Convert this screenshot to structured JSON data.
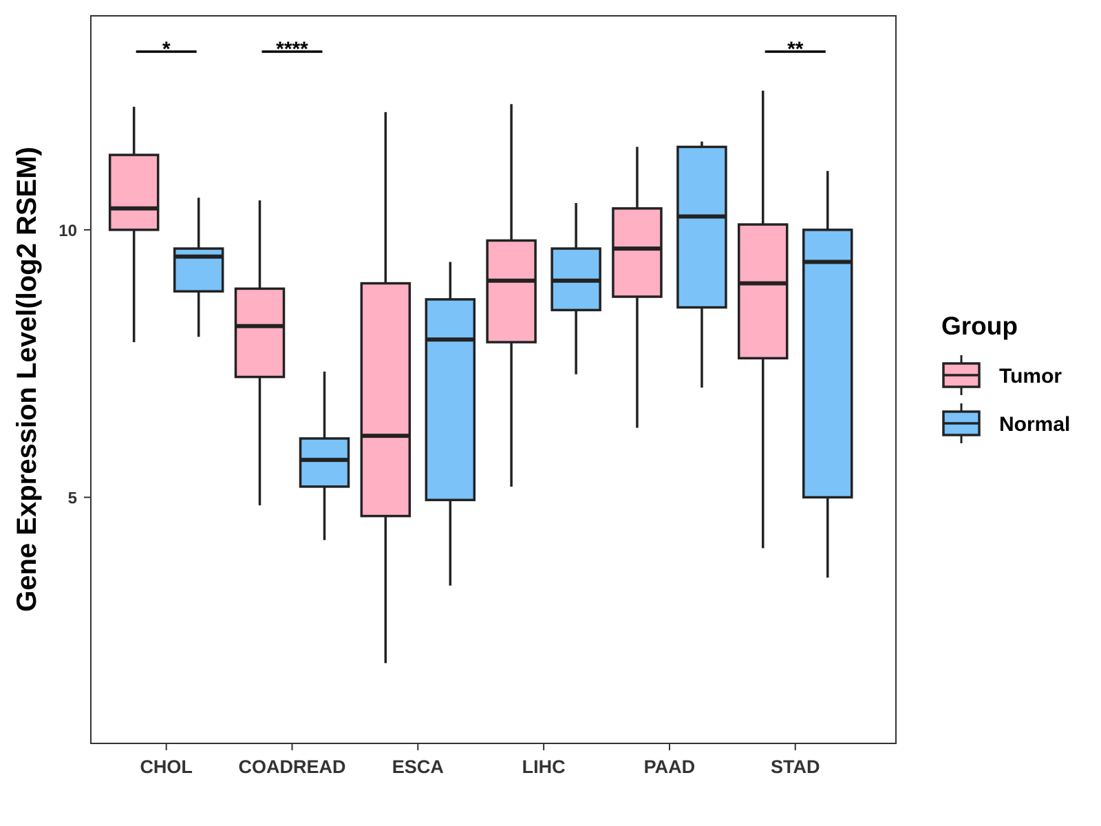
{
  "chart_data": {
    "type": "boxplot",
    "ylabel": "Gene Expression Level(log2 RSEM)",
    "xlabel": "",
    "title": "",
    "categories": [
      "CHOL",
      "COADREAD",
      "ESCA",
      "LIHC",
      "PAAD",
      "STAD"
    ],
    "yticks": [
      5,
      10
    ],
    "ylim": [
      0.4,
      14.0
    ],
    "grid": false,
    "legend": {
      "title": "Group",
      "placement": "right",
      "entries": [
        {
          "label": "Tumor",
          "color": "#FFB0C2"
        },
        {
          "label": "Normal",
          "color": "#7AC2F8"
        }
      ]
    },
    "series": [
      {
        "name": "Tumor",
        "color": "#FFB0C2",
        "boxes": [
          {
            "min": 7.9,
            "q1": 10.0,
            "median": 10.4,
            "q3": 11.4,
            "max": 12.3
          },
          {
            "min": 4.85,
            "q1": 7.25,
            "median": 8.2,
            "q3": 8.9,
            "max": 10.55
          },
          {
            "min": 1.9,
            "q1": 4.65,
            "median": 6.15,
            "q3": 9.0,
            "max": 12.2
          },
          {
            "min": 5.2,
            "q1": 7.9,
            "median": 9.05,
            "q3": 9.8,
            "max": 12.35
          },
          {
            "min": 6.3,
            "q1": 8.75,
            "median": 9.65,
            "q3": 10.4,
            "max": 11.55
          },
          {
            "min": 4.05,
            "q1": 7.6,
            "median": 9.0,
            "q3": 10.1,
            "max": 12.6
          }
        ]
      },
      {
        "name": "Normal",
        "color": "#7AC2F8",
        "boxes": [
          {
            "min": 8.0,
            "q1": 8.85,
            "median": 9.5,
            "q3": 9.65,
            "max": 10.6
          },
          {
            "min": 4.2,
            "q1": 5.2,
            "median": 5.7,
            "q3": 6.1,
            "max": 7.35
          },
          {
            "min": 3.35,
            "q1": 4.95,
            "median": 7.95,
            "q3": 8.7,
            "max": 9.4
          },
          {
            "min": 7.3,
            "q1": 8.5,
            "median": 9.05,
            "q3": 9.65,
            "max": 10.5
          },
          {
            "min": 7.05,
            "q1": 8.55,
            "median": 10.25,
            "q3": 11.55,
            "max": 11.65
          },
          {
            "min": 3.5,
            "q1": 5.0,
            "median": 9.4,
            "q3": 10.0,
            "max": 11.1
          }
        ]
      }
    ],
    "significance": [
      "*",
      "****",
      "",
      "",
      "",
      "**"
    ]
  }
}
